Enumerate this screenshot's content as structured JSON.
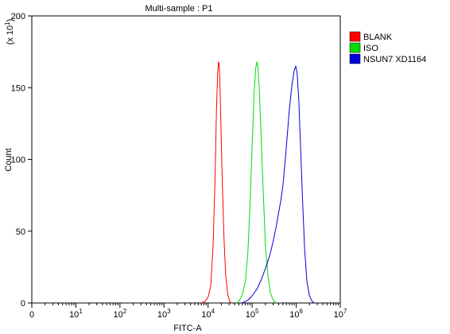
{
  "chart_data": {
    "type": "line",
    "title": "Multi-sample : P1",
    "xlabel": "FITC-A",
    "ylabel": "Count",
    "y_multiplier_base": "(x 10",
    "y_multiplier_exp": "1",
    "y_multiplier_close": ")",
    "x_scale": "log",
    "xlim": [
      1,
      10000000
    ],
    "ylim": [
      0,
      200
    ],
    "x_ticks": [
      {
        "value": 1,
        "base": "0",
        "exp": ""
      },
      {
        "value": 10,
        "base": "10",
        "exp": "1"
      },
      {
        "value": 100,
        "base": "10",
        "exp": "2"
      },
      {
        "value": 1000,
        "base": "10",
        "exp": "3"
      },
      {
        "value": 10000,
        "base": "10",
        "exp": "4"
      },
      {
        "value": 100000,
        "base": "10",
        "exp": "5"
      },
      {
        "value": 1000000,
        "base": "10",
        "exp": "6"
      },
      {
        "value": 10000000,
        "base": "10",
        "exp": "7"
      }
    ],
    "y_ticks": [
      0,
      50,
      100,
      150,
      200
    ],
    "grid": false,
    "legend_position": "top-right",
    "series": [
      {
        "name": "BLANK",
        "color": "#ff0000",
        "points": [
          [
            7000,
            0
          ],
          [
            8500,
            1
          ],
          [
            10000,
            4
          ],
          [
            11500,
            12
          ],
          [
            13000,
            40
          ],
          [
            14500,
            90
          ],
          [
            15500,
            135
          ],
          [
            16500,
            160
          ],
          [
            17200,
            168
          ],
          [
            17800,
            167
          ],
          [
            18500,
            155
          ],
          [
            19500,
            125
          ],
          [
            21000,
            85
          ],
          [
            23000,
            45
          ],
          [
            25000,
            20
          ],
          [
            28000,
            6
          ],
          [
            31000,
            1
          ],
          [
            34000,
            0
          ]
        ]
      },
      {
        "name": "ISO",
        "color": "#00dd00",
        "points": [
          [
            45000,
            0
          ],
          [
            52000,
            2
          ],
          [
            60000,
            6
          ],
          [
            70000,
            15
          ],
          [
            80000,
            35
          ],
          [
            90000,
            70
          ],
          [
            100000,
            110
          ],
          [
            110000,
            145
          ],
          [
            120000,
            163
          ],
          [
            128000,
            168
          ],
          [
            135000,
            165
          ],
          [
            145000,
            150
          ],
          [
            160000,
            115
          ],
          [
            180000,
            75
          ],
          [
            200000,
            40
          ],
          [
            230000,
            18
          ],
          [
            260000,
            7
          ],
          [
            300000,
            2
          ],
          [
            350000,
            0
          ]
        ]
      },
      {
        "name": "NSUN7 XD1164",
        "color": "#0000dd",
        "points": [
          [
            60000,
            0
          ],
          [
            80000,
            2
          ],
          [
            100000,
            5
          ],
          [
            130000,
            10
          ],
          [
            160000,
            16
          ],
          [
            200000,
            24
          ],
          [
            250000,
            33
          ],
          [
            300000,
            43
          ],
          [
            350000,
            53
          ],
          [
            400000,
            63
          ],
          [
            450000,
            72
          ],
          [
            500000,
            82
          ],
          [
            550000,
            96
          ],
          [
            620000,
            115
          ],
          [
            700000,
            135
          ],
          [
            800000,
            152
          ],
          [
            900000,
            162
          ],
          [
            980000,
            165
          ],
          [
            1050000,
            160
          ],
          [
            1150000,
            140
          ],
          [
            1250000,
            110
          ],
          [
            1400000,
            70
          ],
          [
            1550000,
            38
          ],
          [
            1750000,
            15
          ],
          [
            2000000,
            5
          ],
          [
            2300000,
            1
          ],
          [
            2600000,
            0
          ]
        ]
      }
    ]
  }
}
